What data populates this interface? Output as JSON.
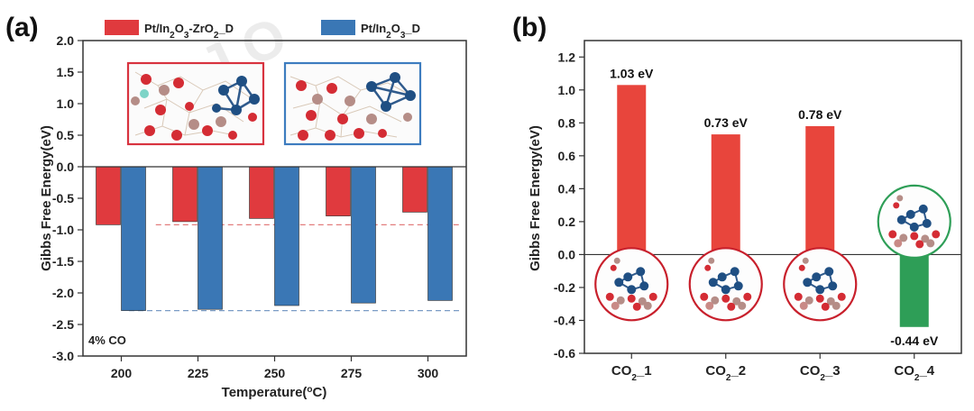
{
  "chart_data": [
    {
      "panel": "(a)",
      "type": "bar",
      "xlabel": "Temperature(°C)",
      "xlabel_parts": [
        "Temperature(",
        "o",
        "C)"
      ],
      "ylabel": "Gibbs Free Energy(eV)",
      "ylim": [
        -3.0,
        2.0
      ],
      "yticks": [
        "2.0",
        "1.5",
        "1.0",
        "0.5",
        "0.0",
        "-0.5",
        "-1.0",
        "-1.5",
        "-2.0",
        "-2.5",
        "-3.0"
      ],
      "categories": [
        "200",
        "225",
        "250",
        "275",
        "300"
      ],
      "series": [
        {
          "name": "Pt/In2O3-ZrO2_D",
          "name_parts": [
            "Pt/In",
            "2",
            "O",
            "3",
            "-ZrO",
            "2",
            "_D"
          ],
          "color": "#e03a3e",
          "values": [
            -0.92,
            -0.87,
            -0.82,
            -0.78,
            -0.72
          ]
        },
        {
          "name": "Pt/In2O3_D",
          "name_parts": [
            "Pt/In",
            "2",
            "O",
            "3",
            "_D"
          ],
          "color": "#3a77b5",
          "values": [
            -2.28,
            -2.26,
            -2.2,
            -2.16,
            -2.12
          ]
        }
      ],
      "reference_lines": [
        {
          "value": -0.92,
          "color": "#e27d7d",
          "style": "dashed"
        },
        {
          "value": -2.28,
          "color": "#7a9cc6",
          "style": "dashed"
        }
      ],
      "annotation": "4% CO",
      "legend": "top",
      "inset_structures": [
        "Pt/In2O3-ZrO2_D structure",
        "Pt/In2O3_D structure"
      ]
    },
    {
      "panel": "(b)",
      "type": "bar",
      "xlabel": "",
      "ylabel": "Gibbs Free Energy(eV)",
      "ylim": [
        -0.6,
        1.3
      ],
      "yticks": [
        "1.2",
        "1.0",
        "0.8",
        "0.6",
        "0.4",
        "0.2",
        "0.0",
        "-0.2",
        "-0.4",
        "-0.6"
      ],
      "categories": [
        {
          "text": "CO2_1",
          "parts": [
            "CO",
            "2",
            "_1"
          ]
        },
        {
          "text": "CO2_2",
          "parts": [
            "CO",
            "2",
            "_2"
          ]
        },
        {
          "text": "CO2_3",
          "parts": [
            "CO",
            "2",
            "_3"
          ]
        },
        {
          "text": "CO2_4",
          "parts": [
            "CO",
            "2",
            "_4"
          ]
        }
      ],
      "values": [
        1.03,
        0.73,
        0.78,
        -0.44
      ],
      "data_labels": [
        "1.03 eV",
        "0.73 eV",
        "0.78 eV",
        "-0.44 eV"
      ],
      "colors": [
        "#e8453c",
        "#e8453c",
        "#e8453c",
        "#2e9e57"
      ],
      "inset_structures": [
        "CO2_1 structure",
        "CO2_2 structure",
        "CO2_3 structure",
        "CO2_4 structure"
      ]
    }
  ],
  "colors": {
    "red": "#e03a3e",
    "blue": "#3a77b5",
    "green": "#2e9e57",
    "circle_red": "#c8202c",
    "circle_green": "#2e9e57"
  }
}
